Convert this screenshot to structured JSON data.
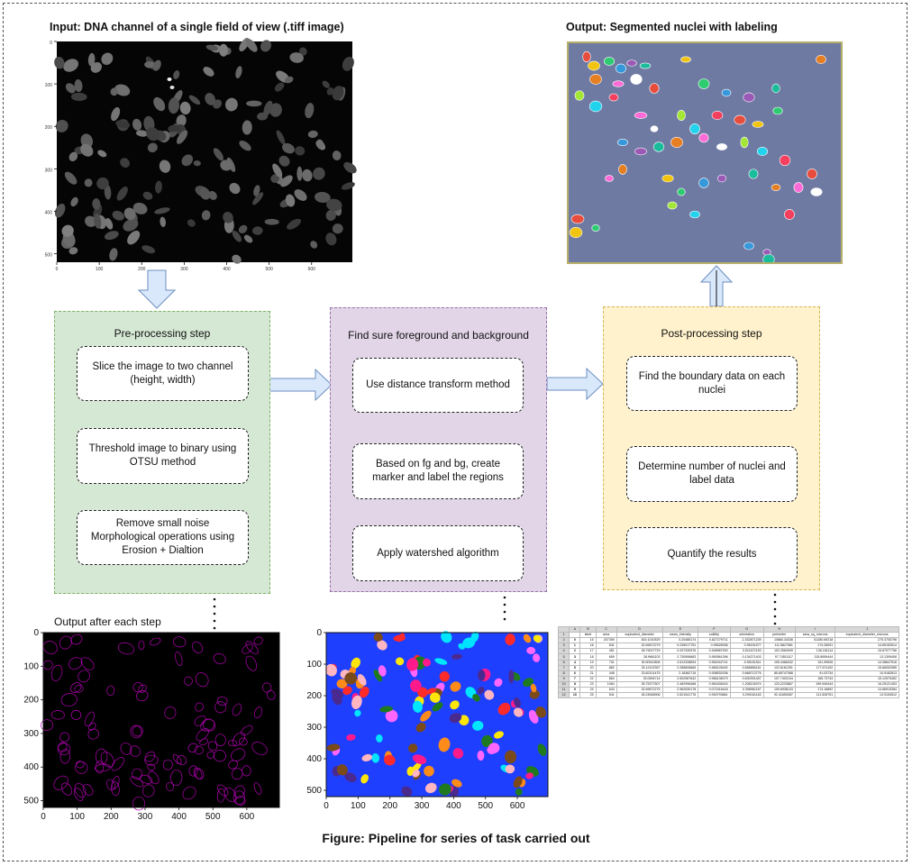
{
  "figure_caption": "Figure: Pipeline for series of task carried out",
  "input_panel": {
    "title": "Input: DNA channel of a single field of view (.tiff image)",
    "x_ticks": [
      "0",
      "100",
      "200",
      "300",
      "400",
      "500",
      "600"
    ],
    "y_ticks": [
      "0",
      "100",
      "200",
      "300",
      "400",
      "500"
    ]
  },
  "output_panel": {
    "title": "Output: Segmented nuclei with labeling"
  },
  "lanes": {
    "preprocessing": {
      "title": "Pre-processing step",
      "steps": [
        "Slice the image to two channel (height, width)",
        "Threshold image to binary using OTSU method",
        "Remove small noise Morphological operations using Erosion + Dialtion"
      ]
    },
    "foreground": {
      "title": "Find sure foreground and background",
      "steps": [
        "Use distance transform method",
        "Based on fg and bg, create marker and label the regions",
        "Apply watershed algorithm"
      ]
    },
    "postprocessing": {
      "title": "Post-processing step",
      "steps": [
        "Find the boundary data on each nuclei",
        "Determine number of nuclei and label data",
        "Quantify the results"
      ]
    }
  },
  "contour_panel": {
    "title": "Output after each step",
    "x_ticks": [
      "0",
      "100",
      "200",
      "300",
      "400",
      "500",
      "600"
    ],
    "y_ticks": [
      "0",
      "100",
      "200",
      "300",
      "400",
      "500"
    ]
  },
  "watershed_panel": {
    "x_ticks": [
      "0",
      "100",
      "200",
      "300",
      "400",
      "500",
      "600"
    ],
    "y_ticks": [
      "0",
      "100",
      "200",
      "300",
      "400",
      "500"
    ]
  },
  "results_table": {
    "columns": [
      "A",
      "B",
      "C",
      "D",
      "E",
      "F",
      "G",
      "H",
      "I",
      "J"
    ],
    "headers": [
      "label",
      "area",
      "equivalent_diameter",
      "mean_intensity",
      "solidity",
      "orientation",
      "perimeter",
      "area_sq_microns",
      "equivalent_diameter_microns"
    ],
    "rows": [
      [
        "2",
        "0",
        "15",
        "207399",
        "815.1010529",
        "0.20485174",
        "0.827279711",
        "-1.532871239",
        "10884.34336",
        "51280.69218",
        "275.3705796"
      ],
      [
        "3",
        "1",
        "16",
        "641",
        "32.69672279",
        "0.235017751",
        "0.95526936",
        "0.95151577",
        "111.5827561",
        "174.26091",
        "14.69152614"
      ],
      [
        "4",
        "2",
        "17",
        "451",
        "28.79027729",
        "0.207339376",
        "0.948987930",
        "0.511672153",
        "102.2563099",
        "136.181114",
        "15.67077756"
      ],
      [
        "5",
        "3",
        "18",
        "659",
        "28.9661103",
        "2.730506683",
        "0.950561396",
        "0.134271403",
        "97.74511117",
        "115.8959444",
        "13.1309408"
      ],
      [
        "6",
        "4",
        "19",
        "731",
        "30.50510606",
        "2.612328694",
        "0.962042741",
        "-0.55151511",
        "105.4468432",
        "151.99526",
        "14.08847516"
      ],
      [
        "7",
        "5",
        "20",
        "882",
        "33.12102357",
        "2.285606665",
        "0.965126492",
        "0.656856161",
        "122.6161251",
        "177.671192",
        "15.66052985"
      ],
      [
        "8",
        "6",
        "21",
        "446",
        "23.82101475",
        "2.16362715",
        "0.938532036",
        "0.668713776",
        "85.65747088",
        "91.03734",
        "10.9182813"
      ],
      [
        "9",
        "7",
        "22",
        "864",
        "33.0594714",
        "2.502987642",
        "0.966136079",
        "0.630391457",
        "107.7402104",
        "165.73734",
        "15.12575452"
      ],
      [
        "10",
        "8",
        "23",
        "1084",
        "35.75377607",
        "2.462996468",
        "0.961636424",
        "1.208134974",
        "123.2233867",
        "199.945444",
        "16.25121453"
      ],
      [
        "11",
        "9",
        "24",
        "643",
        "32.69672279",
        "2.962530178",
        "0.071516418",
        "0.398961167",
        "109.6936103",
        "174.16892",
        "14.66915384"
      ],
      [
        "12",
        "10",
        "25",
        "541",
        "26.24548906",
        "2.621541776",
        "0.930793861",
        "0.299161163",
        "92.41650087",
        "111.528751",
        "13.9154512"
      ]
    ]
  },
  "colors": {
    "preprocessing_fill": "#d5e8d4",
    "preprocessing_border": "#82b366",
    "foreground_fill": "#e1d5e7",
    "foreground_border": "#9673a6",
    "postprocessing_fill": "#fff2cc",
    "postprocessing_border": "#d6b656",
    "big_arrow_fill": "#dae8fc",
    "big_arrow_border": "#6c8ebf",
    "segmented_background": "#6f7aa3",
    "watershed_background": "#1f3fff"
  }
}
